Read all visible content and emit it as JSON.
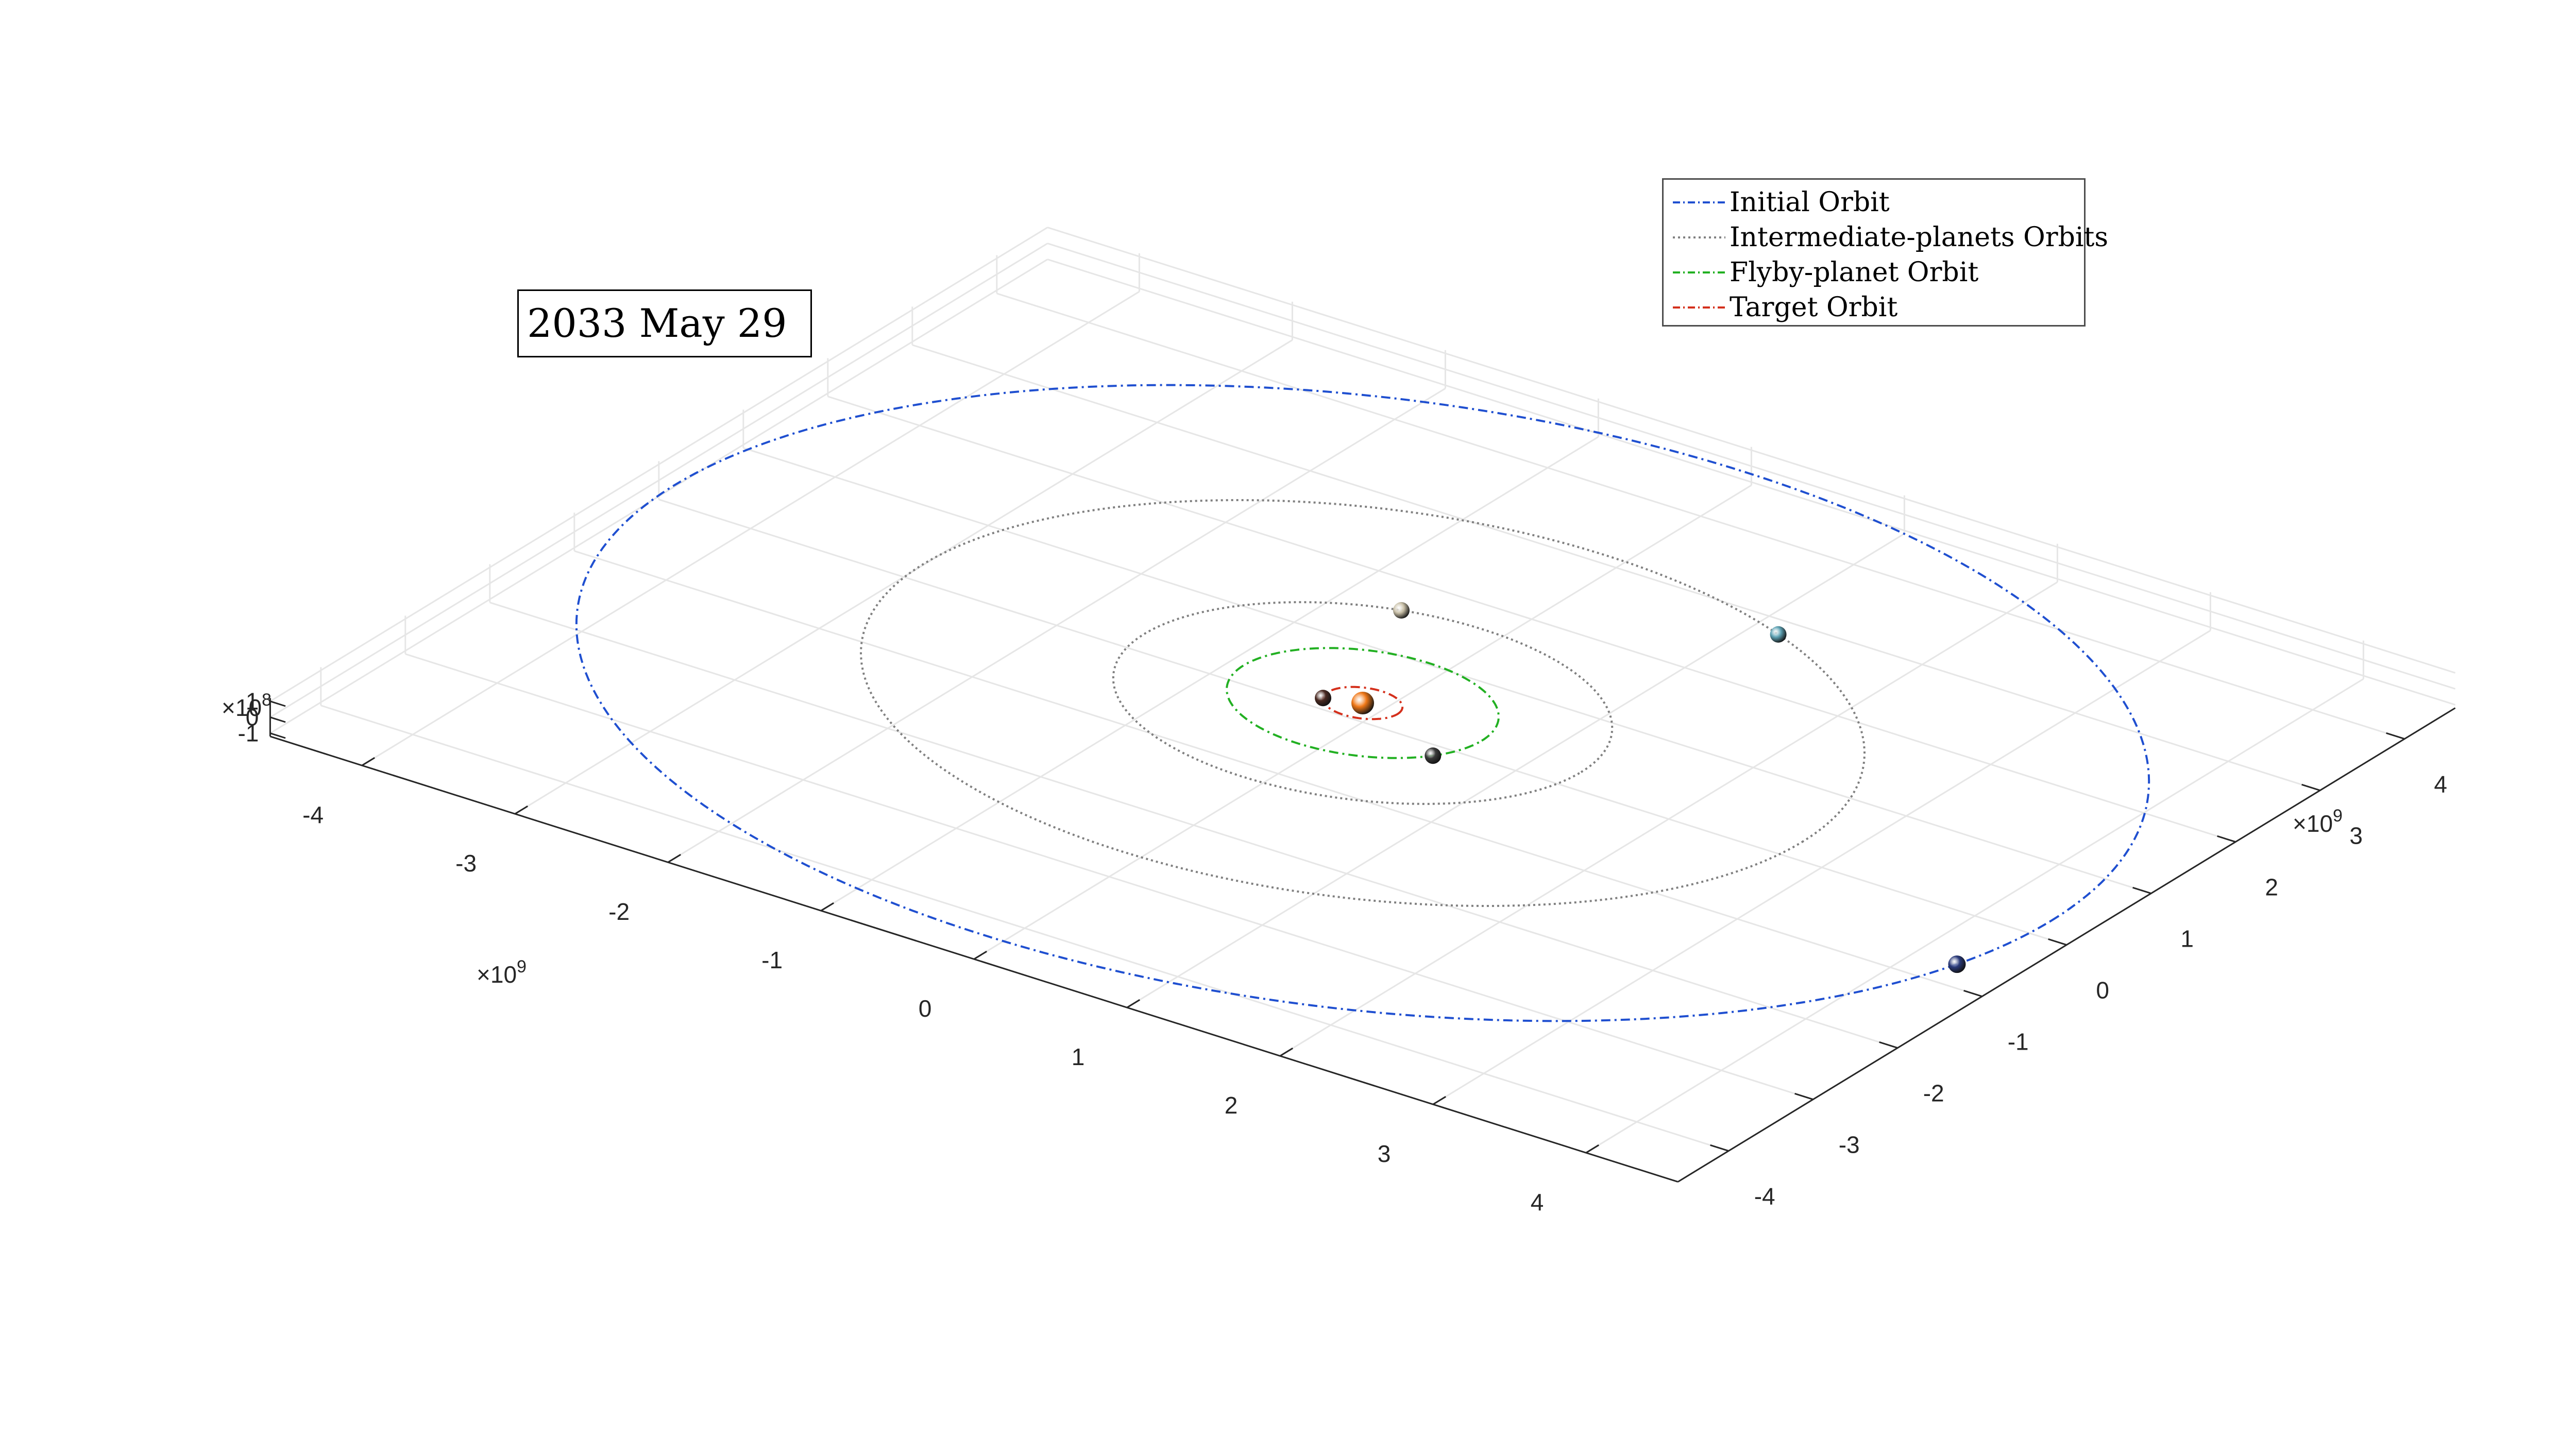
{
  "date_label": "2033 May 29",
  "legend": [
    {
      "label": "Initial Orbit",
      "color": "#1f4fd0",
      "dash": "dashdot"
    },
    {
      "label": "Intermediate-planets Orbits",
      "color": "#808080",
      "dash": "dotted"
    },
    {
      "label": "Flyby-planet Orbit",
      "color": "#22b022",
      "dash": "dashdot"
    },
    {
      "label": "Target Orbit",
      "color": "#d4301c",
      "dash": "dashdot"
    }
  ],
  "chart_data": {
    "type": "line",
    "view": "3d-perspective",
    "grid": true,
    "legend_position": "top-right",
    "axes": {
      "x": {
        "ticks": [
          -4,
          -3,
          -2,
          -1,
          0,
          1,
          2,
          3,
          4
        ],
        "exponent_base": "×10",
        "exponent": "9",
        "lim": [
          -4.6,
          4.6
        ]
      },
      "y": {
        "ticks": [
          -4,
          -3,
          -2,
          -1,
          0,
          1,
          2,
          3,
          4
        ],
        "exponent_base": "×10",
        "exponent": "9",
        "lim": [
          -4.6,
          4.6
        ]
      },
      "z": {
        "ticks": [
          -1,
          0,
          1
        ],
        "exponent_base": "×10",
        "exponent": "8",
        "lim": [
          -1.2,
          1.2
        ]
      }
    },
    "series": [
      {
        "name": "Initial Orbit",
        "radius_au": 30.07,
        "color": "#1f4fd0",
        "dash": "dashdot"
      },
      {
        "name": "Intermediate-planets Orbits",
        "radius_au": 19.19,
        "color": "#808080",
        "dash": "dotted"
      },
      {
        "name": "Intermediate-planets Orbits",
        "radius_au": 9.54,
        "color": "#808080",
        "dash": "dotted"
      },
      {
        "name": "Flyby-planet Orbit",
        "radius_au": 5.2,
        "color": "#22b022",
        "dash": "dashdot"
      },
      {
        "name": "Target Orbit",
        "radius_au": 1.52,
        "color": "#d4301c",
        "dash": "dashdot"
      }
    ],
    "bodies": [
      {
        "body": "sun",
        "color": "#f07818"
      },
      {
        "body": "neptune",
        "color": "#2a3a7a"
      },
      {
        "body": "uranus",
        "color": "#5fa3b5"
      },
      {
        "body": "saturn",
        "color": "#c9c0a8"
      },
      {
        "body": "jupiter",
        "color": "#3a3a3a"
      },
      {
        "body": "mars",
        "color": "#4a2a22"
      }
    ]
  }
}
